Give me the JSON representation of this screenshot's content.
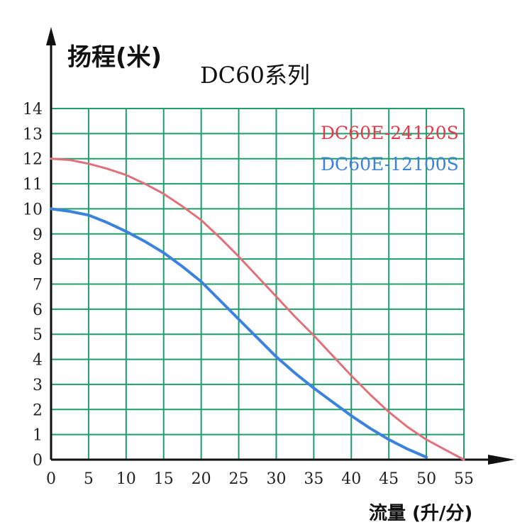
{
  "chart_data": {
    "type": "line",
    "title": "DC60系列",
    "ylabel": "扬程(米)",
    "xlabel": "流量 (升/分)",
    "x_ticks": [
      0,
      5,
      10,
      15,
      20,
      25,
      30,
      35,
      40,
      45,
      50,
      55
    ],
    "y_ticks": [
      0,
      1,
      2,
      3,
      4,
      5,
      6,
      7,
      8,
      9,
      10,
      11,
      12,
      13,
      14
    ],
    "xlim": [
      0,
      55
    ],
    "ylim": [
      0,
      14
    ],
    "grid": true,
    "grid_color": "#1f9e6a",
    "legend_position": "top-right",
    "series": [
      {
        "name": "DC60E-24120S",
        "color": "#e0707a",
        "label_color": "#e23a48",
        "x": [
          0,
          2.5,
          5,
          7.5,
          10,
          12.5,
          15,
          17.5,
          20,
          22.5,
          25,
          27.5,
          30,
          32.5,
          35,
          37.5,
          40,
          42.5,
          45,
          47.5,
          50,
          52.5,
          55
        ],
        "y": [
          12,
          11.95,
          11.8,
          11.6,
          11.35,
          11.0,
          10.6,
          10.1,
          9.55,
          8.85,
          8.1,
          7.3,
          6.5,
          5.7,
          4.95,
          4.15,
          3.35,
          2.6,
          1.9,
          1.3,
          0.8,
          0.4,
          0
        ]
      },
      {
        "name": "DC60E-12100S",
        "color": "#3a82dc",
        "label_color": "#3a82dc",
        "x": [
          0,
          2.5,
          5,
          7.5,
          10,
          12.5,
          15,
          17.5,
          20,
          22.5,
          25,
          27.5,
          30,
          32.5,
          35,
          37.5,
          40,
          42.5,
          45,
          47.5,
          50
        ],
        "y": [
          10,
          9.9,
          9.75,
          9.45,
          9.1,
          8.7,
          8.25,
          7.7,
          7.1,
          6.35,
          5.6,
          4.85,
          4.1,
          3.45,
          2.85,
          2.3,
          1.75,
          1.25,
          0.8,
          0.42,
          0.1
        ]
      }
    ]
  }
}
